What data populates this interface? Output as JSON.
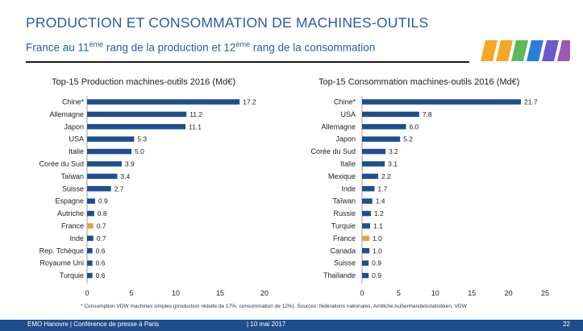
{
  "header": {
    "title": "PRODUCTION ET CONSOMMATION DE MACHINES-OUTILS",
    "subtitle_part1": "France au 11",
    "subtitle_sup1": "ème",
    "subtitle_part2": " rang de la production et 12",
    "subtitle_sup2": "ème",
    "subtitle_part3": " rang de la consommation"
  },
  "logo": {
    "colors": [
      "#f5a623",
      "#f5a623",
      "#5cb85c",
      "#2a7fd4",
      "#6a5acd",
      "#9b59b6"
    ]
  },
  "footnote": "* Consumption VDW machines simples (production réduite de 17%, consommation de 12%). Sources: fédérations nationales, Amtliche Außenhandelsstatistiken, VDW",
  "footer": {
    "left": "EMO Hanovre | Conférence de presse à Paris",
    "date": "| 10 mai 2017",
    "page": "22"
  },
  "colors": {
    "bar": "#1f4e8c",
    "highlight": "#e8a04a",
    "footer": "#1f4e8c"
  },
  "chart_data": [
    {
      "type": "bar",
      "orientation": "horizontal",
      "title": "Top-15 Production machines-outils 2016 (Md€)",
      "categories": [
        "Chine*",
        "Allemagne",
        "Japon",
        "USA",
        "Italie",
        "Corée du Sud",
        "Taïwan",
        "Suisse",
        "Espagne",
        "Autriche",
        "France",
        "Inde",
        "Rep. Tchèque",
        "Royaume Uni",
        "Turquie"
      ],
      "values": [
        17.2,
        11.2,
        11.1,
        5.3,
        5.0,
        3.9,
        3.4,
        2.7,
        0.9,
        0.8,
        0.7,
        0.7,
        0.6,
        0.6,
        0.6
      ],
      "value_labels": [
        "17.2",
        "11.2",
        "11.1",
        "5.3",
        "5.0",
        "3.9",
        "3.4",
        "2.7",
        "0.9",
        "0.8",
        "0.7",
        "0.7",
        "0.6",
        "0.6",
        "0.6"
      ],
      "highlight": "France",
      "xlim": [
        0,
        20
      ],
      "ticks": [
        0,
        5,
        10,
        15,
        20
      ],
      "tick_labels": [
        "0",
        "5",
        "10",
        "15",
        "20"
      ],
      "grid": false
    },
    {
      "type": "bar",
      "orientation": "horizontal",
      "title": "Top-15 Consommation machines-outils 2016 (Md€)",
      "categories": [
        "Chine*",
        "USA",
        "Allemagne",
        "Japon",
        "Corée du Sud",
        "Italie",
        "Mexique",
        "Inde",
        "Taïwan",
        "Russie",
        "Turquie",
        "France",
        "Canada",
        "Suisse",
        "Thaïlande"
      ],
      "values": [
        21.7,
        7.8,
        6.0,
        5.2,
        3.2,
        3.1,
        2.2,
        1.7,
        1.4,
        1.2,
        1.1,
        1.0,
        1.0,
        0.9,
        0.9
      ],
      "value_labels": [
        "21.7",
        "7.8",
        "6.0",
        "5.2",
        "3.2",
        "3.1",
        "2.2",
        "1.7",
        "1.4",
        "1.2",
        "1.1",
        "1.0",
        "1.0",
        "0.9",
        "0.9"
      ],
      "highlight": "France",
      "xlim": [
        0,
        25
      ],
      "ticks": [
        0,
        5,
        10,
        15,
        20,
        25
      ],
      "tick_labels": [
        "0",
        "5",
        "10",
        "15",
        "20",
        "25"
      ],
      "grid": false
    }
  ]
}
